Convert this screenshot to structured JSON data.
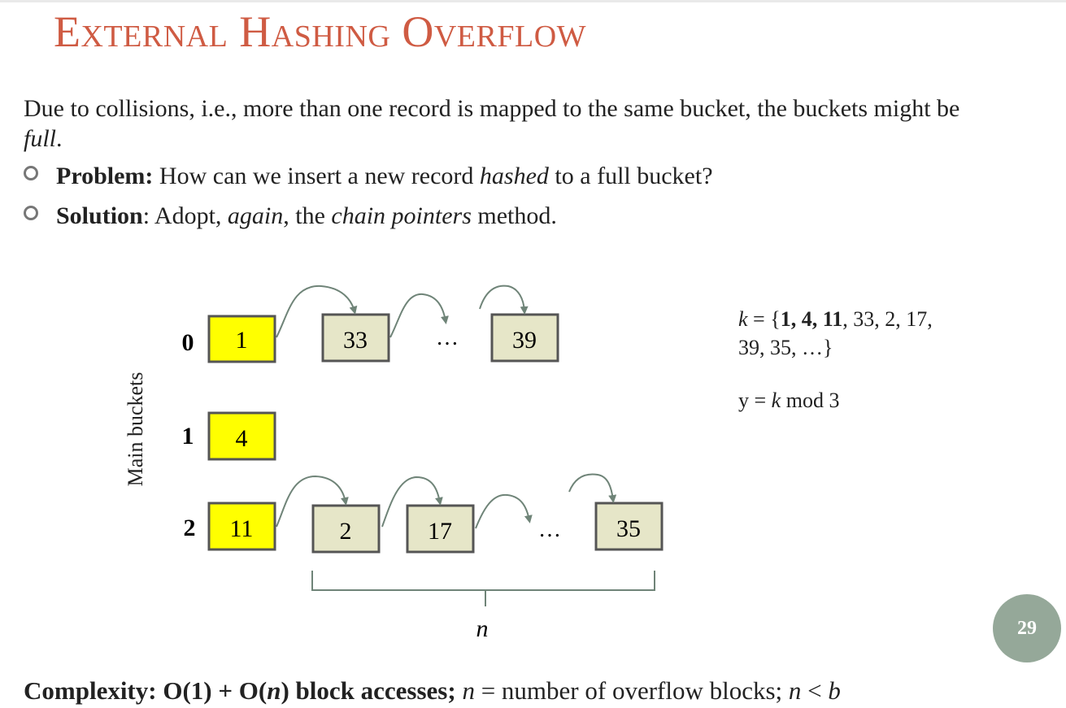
{
  "slide": {
    "title": "External Hashing Overflow",
    "intro_a": "Due to collisions, i.e., more than one record is mapped to the same bucket, the buckets might be ",
    "intro_b": "full",
    "intro_c": ".",
    "bullets": [
      {
        "label": "Problem:",
        "t1": " How can we insert a new record ",
        "em1": "hashed",
        "t2": " to a full bucket?"
      },
      {
        "label": "Solution",
        "t1": ": Adopt, ",
        "em1": "again",
        "t2": ", the ",
        "em2": "chain pointers",
        "t3": " method."
      }
    ],
    "page_number": "29"
  },
  "diagram": {
    "axis_label": "Main buckets",
    "bucket_indices": [
      "0",
      "1",
      "2"
    ],
    "main_buckets": [
      "1",
      "4",
      "11"
    ],
    "row0_overflow": [
      "33",
      "39"
    ],
    "row2_overflow": [
      "2",
      "17",
      "35"
    ],
    "ellipsis": "…",
    "brace_label": "n",
    "main_color": "#ffff00",
    "overflow_color": "#e6e6c8",
    "arrow_color": "#6f8478"
  },
  "formula": {
    "k_var": "k",
    "k_eq": " = {",
    "k_bold": "1, 4, 11",
    "k_rest": ", 33, 2, 17,",
    "k_line2": "39, 35, …}",
    "y_pre": "y = ",
    "y_var": "k",
    "y_post": " mod 3"
  },
  "complexity": {
    "bold": "Complexity: O(1) + O(",
    "bold_n": "n",
    "bold2": ") block accesses;",
    "n1": "n",
    "mid": " = number of overflow blocks; ",
    "n2": "n",
    "lt": " < ",
    "b": "b"
  }
}
